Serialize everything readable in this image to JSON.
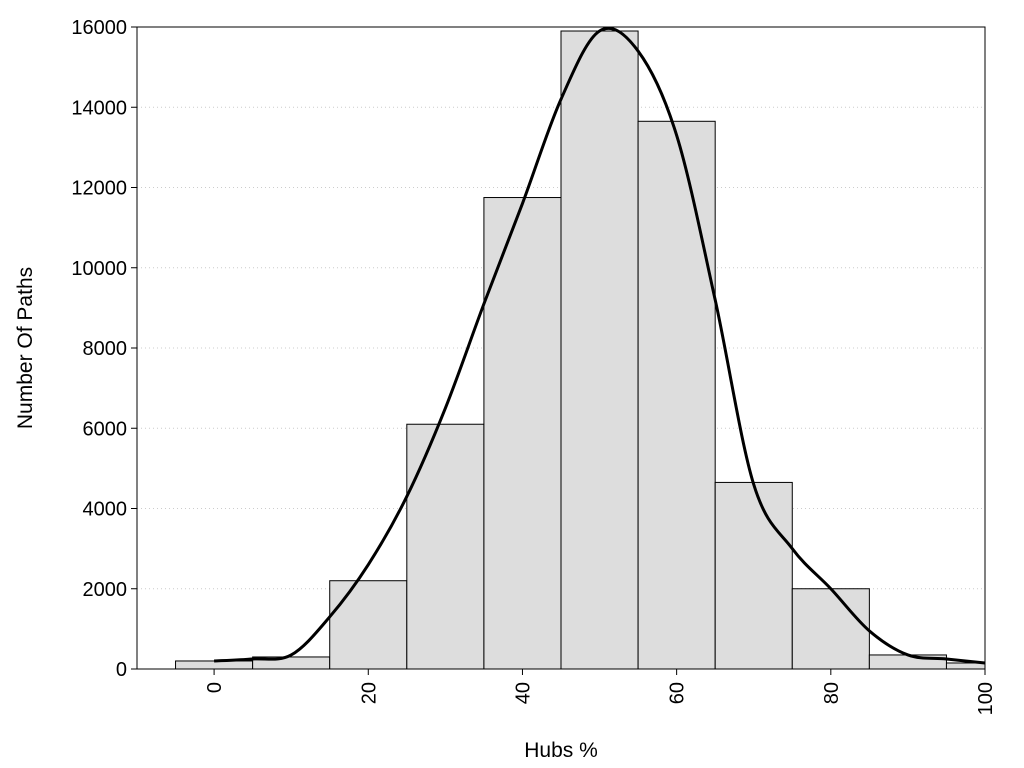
{
  "chart_data": {
    "type": "bar",
    "title": "",
    "xlabel": "Hubs %",
    "ylabel": "Number Of Paths",
    "xlim": [
      -10,
      100
    ],
    "ylim": [
      0,
      16000
    ],
    "grid": "horizontal dotted",
    "colors": {
      "bar_fill": "#dddddd",
      "bar_stroke": "#000000",
      "curve": "#000000",
      "grid": "#cccccc"
    },
    "x_ticks": [
      {
        "value": 0,
        "label": "0"
      },
      {
        "value": 20,
        "label": "20"
      },
      {
        "value": 40,
        "label": "40"
      },
      {
        "value": 60,
        "label": "60"
      },
      {
        "value": 80,
        "label": "80"
      },
      {
        "value": 100,
        "label": "100"
      }
    ],
    "y_ticks": [
      {
        "value": 0,
        "label": "0"
      },
      {
        "value": 2000,
        "label": "2000"
      },
      {
        "value": 4000,
        "label": "4000"
      },
      {
        "value": 6000,
        "label": "6000"
      },
      {
        "value": 8000,
        "label": "8000"
      },
      {
        "value": 10000,
        "label": "10000"
      },
      {
        "value": 12000,
        "label": "12000"
      },
      {
        "value": 14000,
        "label": "14000"
      },
      {
        "value": 16000,
        "label": "16000"
      }
    ],
    "bins": [
      {
        "x0": -5,
        "x1": 5,
        "value": 200
      },
      {
        "x0": 5,
        "x1": 15,
        "value": 300
      },
      {
        "x0": 15,
        "x1": 25,
        "value": 2200
      },
      {
        "x0": 25,
        "x1": 35,
        "value": 6100
      },
      {
        "x0": 35,
        "x1": 45,
        "value": 11750
      },
      {
        "x0": 45,
        "x1": 55,
        "value": 15900
      },
      {
        "x0": 55,
        "x1": 65,
        "value": 13650
      },
      {
        "x0": 65,
        "x1": 75,
        "value": 4650
      },
      {
        "x0": 75,
        "x1": 85,
        "value": 2000
      },
      {
        "x0": 85,
        "x1": 95,
        "value": 350
      },
      {
        "x0": 95,
        "x1": 100,
        "value": 150
      }
    ],
    "density_curve": {
      "x": [
        0,
        5,
        10,
        15,
        20,
        25,
        30,
        35,
        40,
        45,
        50,
        55,
        60,
        65,
        70,
        75,
        80,
        85,
        90,
        95,
        100
      ],
      "y": [
        200,
        250,
        350,
        1300,
        2600,
        4300,
        6500,
        9100,
        11600,
        14200,
        15900,
        15400,
        13300,
        9200,
        4600,
        3000,
        2000,
        950,
        350,
        250,
        150
      ]
    }
  }
}
